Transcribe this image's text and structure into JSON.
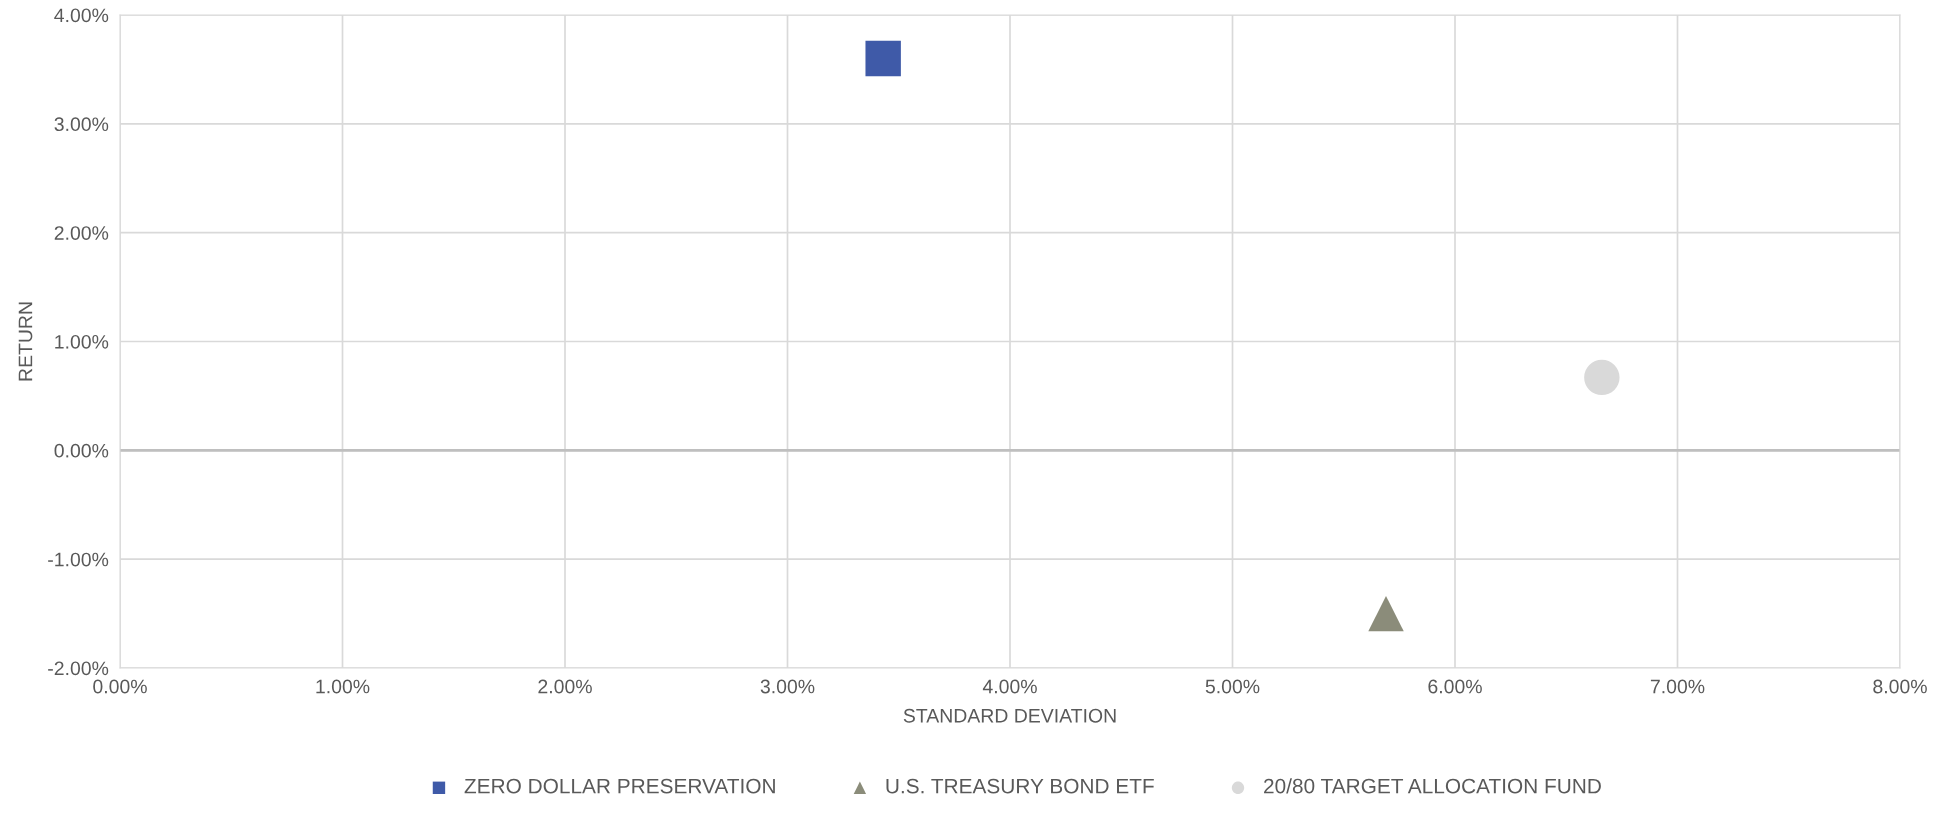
{
  "chart_data": {
    "type": "scatter",
    "xlabel": "STANDARD DEVIATION",
    "ylabel": "RETURN",
    "series": [
      {
        "name": "ZERO DOLLAR PRESERVATION",
        "color": "#3f5aa8",
        "marker": "square",
        "x": [
          3.43
        ],
        "values": [
          3.6
        ]
      },
      {
        "name": "U.S. TREASURY BOND ETF",
        "color": "#8b8c7a",
        "marker": "triangle",
        "x": [
          5.69
        ],
        "values": [
          -1.5
        ]
      },
      {
        "name": "20/80 TARGET ALLOCATION FUND",
        "color": "#d9d9d9",
        "marker": "circle",
        "x": [
          6.66
        ],
        "values": [
          0.67
        ]
      }
    ],
    "xlim": [
      0,
      8
    ],
    "ylim": [
      -2,
      4
    ],
    "xticks": [
      {
        "value": 0,
        "label": "0.00%"
      },
      {
        "value": 1,
        "label": "1.00%"
      },
      {
        "value": 2,
        "label": "2.00%"
      },
      {
        "value": 3,
        "label": "3.00%"
      },
      {
        "value": 4,
        "label": "4.00%"
      },
      {
        "value": 5,
        "label": "5.00%"
      },
      {
        "value": 6,
        "label": "6.00%"
      },
      {
        "value": 7,
        "label": "7.00%"
      },
      {
        "value": 8,
        "label": "8.00%"
      }
    ],
    "yticks": [
      {
        "value": -2,
        "label": "-2.00%"
      },
      {
        "value": -1,
        "label": "-1.00%"
      },
      {
        "value": 0,
        "label": "0.00%"
      },
      {
        "value": 1,
        "label": "1.00%"
      },
      {
        "value": 2,
        "label": "2.00%"
      },
      {
        "value": 3,
        "label": "3.00%"
      },
      {
        "value": 4,
        "label": "4.00%"
      }
    ],
    "ref_lines": [
      {
        "axis": "y",
        "value": 0,
        "color": "#bfbfbf"
      }
    ],
    "grid": true,
    "legend": "bottom"
  }
}
